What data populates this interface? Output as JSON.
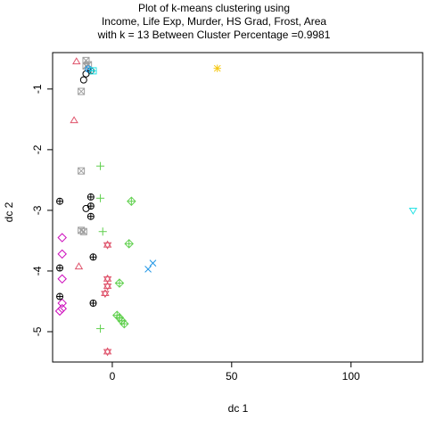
{
  "chart_data": {
    "type": "scatter",
    "title": [
      "Plot of k-means clustering using",
      "Income, Life Exp, Murder, HS Grad, Frost, Area",
      "with  k = 13 Between Cluster Percentage =0.9981"
    ],
    "xlabel": "dc 1",
    "ylabel": "dc 2",
    "xlim": [
      -25,
      130
    ],
    "ylim": [
      -5.5,
      -0.4
    ],
    "xticks": [
      0,
      50,
      100
    ],
    "yticks": [
      -1,
      -2,
      -3,
      -4,
      -5
    ],
    "grid": false,
    "legend": "none",
    "series": [
      {
        "color": "#000000",
        "marker": "circle",
        "points": [
          [
            -12,
            -0.85
          ],
          [
            -11,
            -0.75
          ],
          [
            -11,
            -2.97
          ]
        ]
      },
      {
        "color": "#DF536B",
        "marker": "triangle-up",
        "points": [
          [
            -15,
            -0.55
          ],
          [
            -16,
            -1.52
          ],
          [
            -14,
            -3.93
          ]
        ]
      },
      {
        "color": "#61D04F",
        "marker": "plus",
        "points": [
          [
            -5,
            -2.27
          ],
          [
            -5,
            -2.8
          ],
          [
            -4,
            -3.35
          ],
          [
            -5,
            -4.95
          ]
        ]
      },
      {
        "color": "#2297E6",
        "marker": "x",
        "points": [
          [
            15,
            -3.97
          ],
          [
            17,
            -3.87
          ]
        ]
      },
      {
        "color": "#28E2E5",
        "marker": "triangle-down",
        "points": [
          [
            126,
            -3.0
          ]
        ]
      },
      {
        "color": "#CD0BBC",
        "marker": "diamond",
        "points": [
          [
            -21,
            -3.45
          ],
          [
            -21,
            -3.72
          ],
          [
            -21,
            -4.13
          ],
          [
            -21,
            -4.53
          ],
          [
            -21,
            -4.62
          ],
          [
            -22,
            -4.66
          ]
        ]
      },
      {
        "color": "#F5C710",
        "marker": "asterisk",
        "points": [
          [
            44,
            -0.66
          ]
        ]
      },
      {
        "color": "#9E9E9E",
        "marker": "boxed-x",
        "points": [
          [
            -11,
            -0.53
          ],
          [
            -10,
            -0.6
          ],
          [
            -11,
            -0.62
          ],
          [
            -13,
            -1.04
          ],
          [
            -13,
            -2.35
          ],
          [
            -13,
            -3.33
          ],
          [
            -12,
            -3.35
          ]
        ]
      },
      {
        "color": "#000000",
        "marker": "circled-plus",
        "points": [
          [
            -9,
            -0.7
          ],
          [
            -9,
            -2.78
          ],
          [
            -9,
            -2.93
          ],
          [
            -9,
            -3.1
          ],
          [
            -8,
            -3.77
          ],
          [
            -8,
            -4.53
          ],
          [
            -22,
            -2.85
          ],
          [
            -22,
            -3.95
          ],
          [
            -22,
            -4.42
          ]
        ]
      },
      {
        "color": "#DF536B",
        "marker": "star-of-david",
        "points": [
          [
            -2,
            -3.57
          ],
          [
            -2,
            -4.13
          ],
          [
            -2,
            -4.25
          ],
          [
            -3,
            -4.37
          ],
          [
            -2,
            -5.33
          ]
        ]
      },
      {
        "color": "#61D04F",
        "marker": "circled-diamond",
        "points": [
          [
            8,
            -2.85
          ],
          [
            7,
            -3.55
          ],
          [
            3,
            -4.2
          ],
          [
            2,
            -4.73
          ],
          [
            3,
            -4.77
          ],
          [
            4,
            -4.82
          ],
          [
            5,
            -4.87
          ]
        ]
      },
      {
        "color": "#2297E6",
        "marker": "circled-x",
        "points": [
          [
            -10,
            -0.67
          ]
        ]
      },
      {
        "color": "#28E2E5",
        "marker": "square-plus",
        "points": [
          [
            -8,
            -0.7
          ]
        ]
      }
    ]
  }
}
